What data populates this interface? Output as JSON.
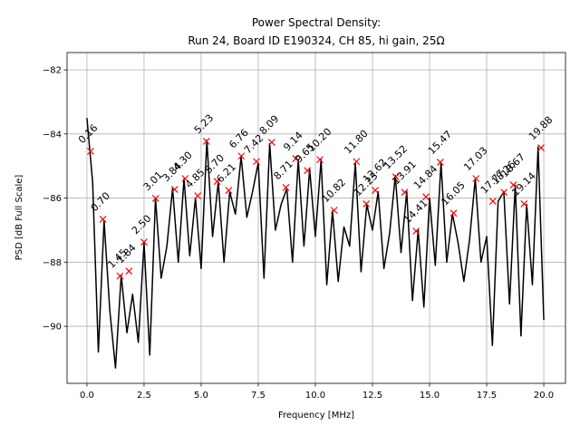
{
  "chart_data": {
    "type": "line",
    "title": "Power Spectral Density:",
    "subtitle": "Run 24, Board ID E190324, CH 85, hi gain, 25Ω",
    "x_label": "Frequency [MHz]",
    "y_label": "PSD [dB Full Scale]",
    "xlim": [
      -0.87,
      20.95
    ],
    "ylim": [
      -91.78,
      -81.46
    ],
    "xticks": [
      {
        "value": 0,
        "label": "0.0"
      },
      {
        "value": 2.5,
        "label": "2.5"
      },
      {
        "value": 5,
        "label": "5.0"
      },
      {
        "value": 7.5,
        "label": "7.5"
      },
      {
        "value": 10,
        "label": "10.0"
      },
      {
        "value": 12.5,
        "label": "12.5"
      },
      {
        "value": 15,
        "label": "15.0"
      },
      {
        "value": 17.5,
        "label": "17.5"
      },
      {
        "value": 20,
        "label": "20.0"
      }
    ],
    "yticks": [
      {
        "value": -82,
        "label": "−82"
      },
      {
        "value": -84,
        "label": "−84"
      },
      {
        "value": -86,
        "label": "−86"
      },
      {
        "value": -88,
        "label": "−88"
      },
      {
        "value": -90,
        "label": "−90"
      }
    ],
    "grid": true,
    "series": [
      {
        "color": "#000000",
        "x": [
          0,
          0.25,
          0.5,
          0.75,
          1,
          1.25,
          1.5,
          1.75,
          2,
          2.25,
          2.5,
          2.75,
          3,
          3.25,
          3.5,
          3.75,
          4,
          4.25,
          4.5,
          4.75,
          5,
          5.25,
          5.5,
          5.75,
          6,
          6.25,
          6.5,
          6.75,
          7,
          7.25,
          7.5,
          7.75,
          8,
          8.25,
          8.5,
          8.75,
          9,
          9.25,
          9.5,
          9.75,
          10,
          10.25,
          10.5,
          10.75,
          11,
          11.25,
          11.5,
          11.75,
          12,
          12.25,
          12.5,
          12.75,
          13,
          13.25,
          13.5,
          13.75,
          14,
          14.25,
          14.5,
          14.75,
          15,
          15.25,
          15.5,
          15.75,
          16,
          16.25,
          16.5,
          16.75,
          17,
          17.25,
          17.5,
          17.75,
          18,
          18.25,
          18.5,
          18.75,
          19,
          19.25,
          19.5,
          19.75,
          20
        ],
        "values": [
          -83.5,
          -85.5,
          -90.8,
          -86.7,
          -89.5,
          -91.3,
          -88.4,
          -90.2,
          -89.0,
          -90.5,
          -87.4,
          -90.9,
          -86.0,
          -88.5,
          -87.5,
          -85.7,
          -88.0,
          -85.4,
          -87.8,
          -86.0,
          -88.2,
          -84.2,
          -87.2,
          -85.5,
          -88.0,
          -85.8,
          -86.5,
          -84.7,
          -86.6,
          -85.8,
          -84.9,
          -88.5,
          -84.3,
          -87.0,
          -86.2,
          -85.7,
          -88.0,
          -84.8,
          -87.5,
          -85.1,
          -87.2,
          -84.8,
          -88.7,
          -86.4,
          -88.6,
          -86.9,
          -87.5,
          -84.9,
          -88.3,
          -86.2,
          -87.0,
          -85.8,
          -88.2,
          -87.1,
          -85.3,
          -87.7,
          -85.8,
          -89.2,
          -87.0,
          -89.4,
          -86.0,
          -88.1,
          -84.9,
          -88.0,
          -86.5,
          -87.4,
          -88.6,
          -87.3,
          -85.4,
          -88.0,
          -87.2,
          -90.6,
          -86.1,
          -85.8,
          -89.3,
          -85.6,
          -90.3,
          -86.2,
          -88.7,
          -84.4,
          -89.8
        ]
      },
      {
        "type": "scatter",
        "color": "#ff0000",
        "x": [
          0.16,
          0.7,
          1.45,
          1.84,
          2.5,
          3.01,
          3.84,
          4.3,
          4.85,
          5.23,
          5.7,
          6.21,
          6.76,
          7.42,
          8.09,
          8.71,
          9.14,
          9.65,
          10.2,
          10.82,
          11.8,
          12.23,
          12.62,
          13.52,
          13.91,
          14.41,
          14.84,
          15.47,
          16.05,
          17.03,
          17.77,
          18.26,
          18.67,
          19.14,
          19.88
        ],
        "labels": [
          "0.16",
          "0.70",
          "1.45",
          "1.84",
          "2.50",
          "3.01",
          "3.84",
          "4.30",
          "4.85",
          "5.23",
          "5.70",
          "6.21",
          "6.76",
          "7.42",
          "8.09",
          "8.71",
          "9.14",
          "9.65",
          "10.20",
          "10.82",
          "11.80",
          "12.23",
          "12.62",
          "13.52",
          "13.91",
          "14.41",
          "14.84",
          "15.47",
          "16.05",
          "17.03",
          "17.77",
          "18.26",
          "18.67",
          "19.14",
          "19.88"
        ],
        "values": [
          -84.54,
          -86.66,
          -88.43,
          -88.28,
          -87.37,
          -86.01,
          -85.73,
          -85.39,
          -85.93,
          -84.23,
          -85.48,
          -85.76,
          -84.69,
          -84.86,
          -84.26,
          -85.67,
          -84.77,
          -85.14,
          -84.8,
          -86.38,
          -84.86,
          -86.18,
          -85.76,
          -85.34,
          -85.82,
          -87.03,
          -85.96,
          -84.88,
          -86.47,
          -85.39,
          -86.1,
          -85.82,
          -85.59,
          -86.18,
          -84.43
        ]
      }
    ]
  }
}
